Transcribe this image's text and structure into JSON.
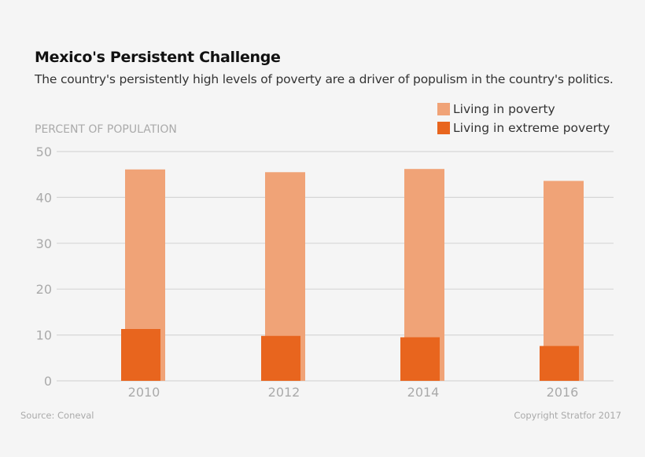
{
  "chart_data": {
    "type": "bar",
    "title": "Mexico's Persistent Challenge",
    "subtitle": "The country's persistently high levels of poverty  are a driver of populism in the country's politics.",
    "ylabel": "PERCENT OF POPULATION",
    "xlabel": "",
    "ylim": [
      0,
      50
    ],
    "yticks": [
      "0",
      "10",
      "20",
      "30",
      "40",
      "50"
    ],
    "categories": [
      "2010",
      "2012",
      "2014",
      "2016"
    ],
    "series": [
      {
        "name": "Living in poverty",
        "values": [
          46.1,
          45.5,
          46.2,
          43.6
        ],
        "color": "#f0a377"
      },
      {
        "name": "Living in extreme poverty",
        "values": [
          11.3,
          9.8,
          9.5,
          7.6
        ],
        "color": "#e8651e"
      }
    ],
    "grid": true,
    "legend": "top-right",
    "source": "Source: Coneval",
    "copyright": "Copyright Stratfor 2017"
  }
}
